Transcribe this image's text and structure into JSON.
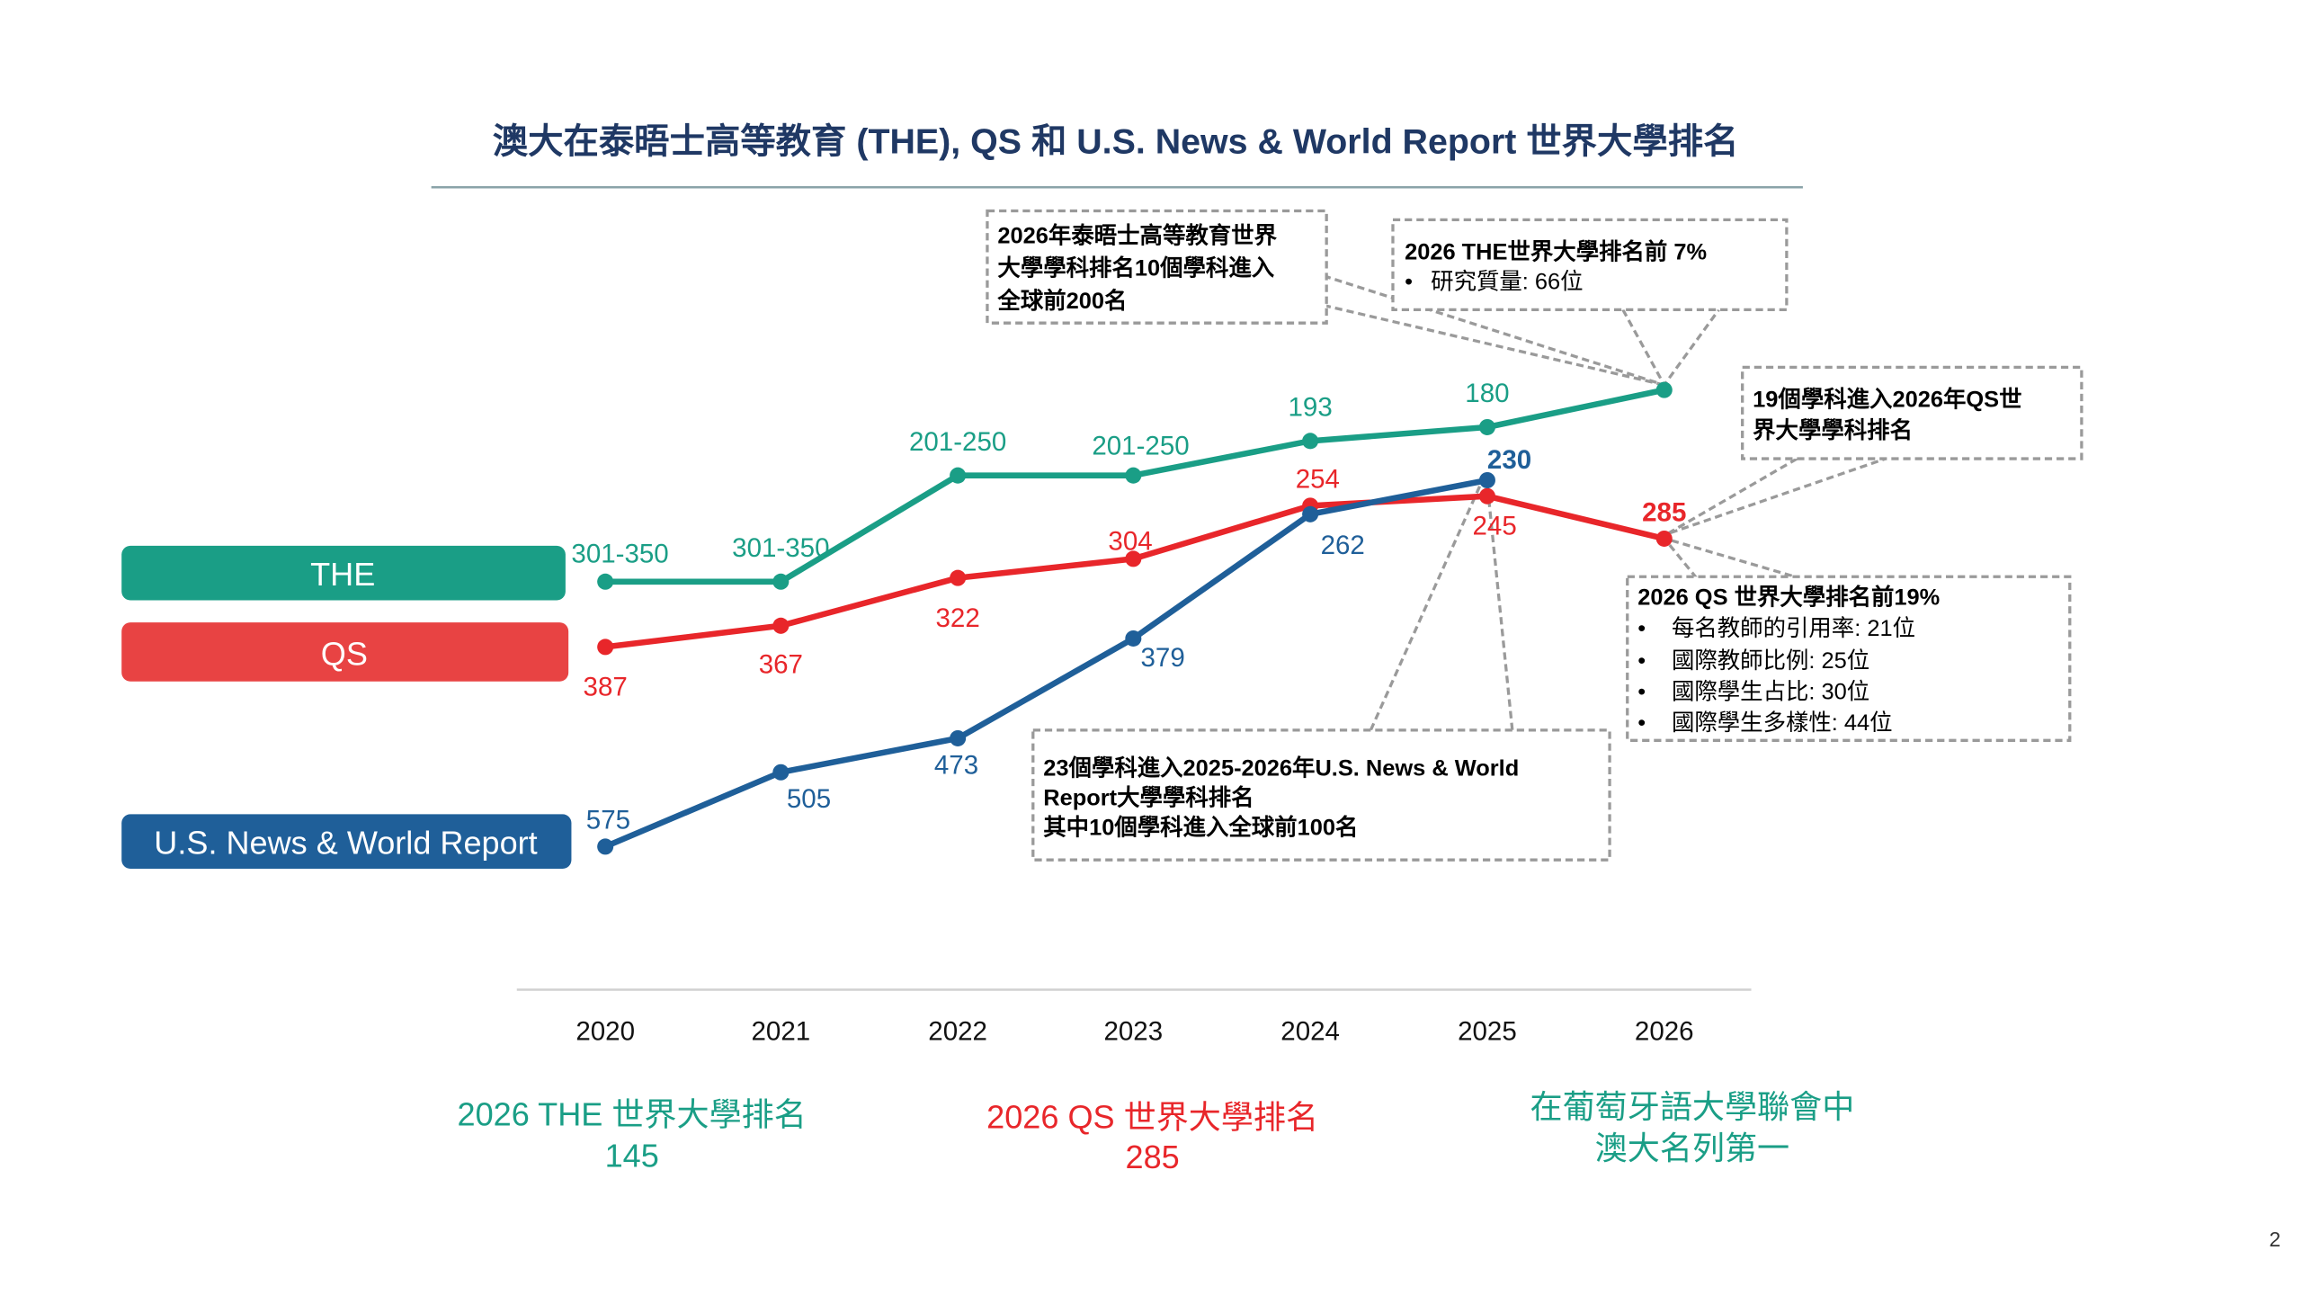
{
  "title": "澳大在泰晤士高等教育 (THE), QS 和 U.S. News & World Report 世界大學排名",
  "page_number": "2",
  "chart_data": {
    "type": "line",
    "categories": [
      "2020",
      "2021",
      "2022",
      "2023",
      "2024",
      "2025",
      "2026"
    ],
    "y_axis": "rank (lower is better, inverted)",
    "grid": false,
    "series": [
      {
        "name": "THE",
        "color": "#1a9e86",
        "values": [
          "301-350",
          "301-350",
          "201-250",
          "201-250",
          "193",
          "180",
          "145"
        ],
        "labels": [
          "301-350",
          "301-350",
          "201-250",
          "201-250",
          "193",
          "180",
          null
        ]
      },
      {
        "name": "QS",
        "color": "#e8262a",
        "values": [
          "387",
          "367",
          "322",
          "304",
          "254",
          "245",
          "285"
        ],
        "labels": [
          "387",
          "367",
          "322",
          "304",
          "254",
          "245",
          "285"
        ]
      },
      {
        "name": "U.S. News & World Report",
        "color": "#1f5f99",
        "values": [
          "575",
          "505",
          "473",
          "379",
          "262",
          "230",
          null
        ],
        "labels": [
          "575",
          "505",
          "473",
          "379",
          "262",
          "230",
          null
        ]
      }
    ],
    "legend": {
      "placement": "left",
      "colors": {
        "THE": "#1a9e86",
        "QS": "#e84343",
        "U.S. News & World Report": "#1f5f99"
      }
    }
  },
  "annotations": {
    "the_subjects": [
      "2026年泰晤士高等教育世界",
      "大學學科排名10個學科進入",
      "全球前200名"
    ],
    "the_rank": {
      "title": "2026 THE世界大學排名前 7%",
      "bullets": [
        "研究質量: 66位"
      ]
    },
    "qs_subjects": [
      "19個學科進入2026年QS世",
      "界大學學科排名"
    ],
    "qs_rank": {
      "title": "2026 QS 世界大學排名前19%",
      "bullets": [
        "每名教師的引用率: 21位",
        "國際教師比例: 25位",
        "國際學生占比: 30位",
        "國際學生多樣性: 44位"
      ]
    },
    "usnews_subjects": [
      "23個學科進入2025-2026年U.S. News & World",
      "Report大學學科排名",
      "其中10個學科進入全球前100名"
    ]
  },
  "summary": {
    "the": {
      "line1": "2026 THE 世界大學排名",
      "line2": "145",
      "color": "#1a9e86"
    },
    "qs": {
      "line1": "2026 QS 世界大學排名",
      "line2": "285",
      "color": "#e8262a"
    },
    "cplp": {
      "line1": "在葡萄牙語大學聯會中",
      "line2": "澳大名列第一",
      "color": "#1a9e86"
    }
  }
}
